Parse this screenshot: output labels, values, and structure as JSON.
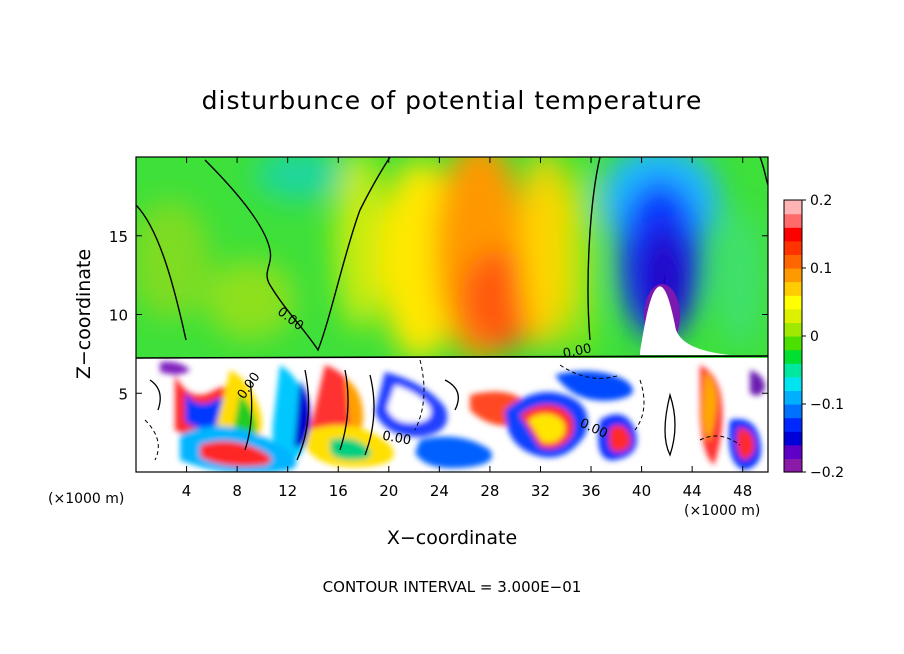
{
  "chart_data": {
    "type": "heatmap",
    "title": "disturbunce of potential temperature",
    "xlabel": "X−coordinate",
    "ylabel": "Z−coordinate",
    "x_unit": "(×1000 m)",
    "xlim": [
      0,
      50
    ],
    "ylim": [
      0,
      20
    ],
    "x_ticks": [
      "4",
      "8",
      "12",
      "16",
      "20",
      "24",
      "28",
      "32",
      "36",
      "40",
      "44",
      "48"
    ],
    "x_tick_values": [
      4,
      8,
      12,
      16,
      20,
      24,
      28,
      32,
      36,
      40,
      44,
      48
    ],
    "y_ticks": [
      "5",
      "10",
      "15"
    ],
    "y_tick_values": [
      5,
      10,
      15
    ],
    "colorbar": {
      "labels": [
        "0.2",
        "0.1",
        "0",
        "−0.1",
        "−0.2"
      ],
      "values": [
        0.2,
        0.1,
        0,
        -0.1,
        -0.2
      ],
      "range": [
        -0.2,
        0.2
      ],
      "colors": [
        "#8b1aa8",
        "#5e00c8",
        "#0000d8",
        "#0028ff",
        "#0070ff",
        "#00b0ff",
        "#00e4f0",
        "#00e8a0",
        "#00e030",
        "#4ce000",
        "#a0e800",
        "#dcf000",
        "#ffff00",
        "#ffcc00",
        "#ff9900",
        "#ff6600",
        "#ff3300",
        "#ff0000",
        "#ff6b6b",
        "#ffb4b4"
      ]
    },
    "contour_labels": [
      "0.00",
      "0.00",
      "0.00",
      "0.00",
      "0.00"
    ],
    "footer": "CONTOUR INTERVAL = 3.000E−01",
    "upper_region_centers": [
      {
        "x": 4,
        "z": 15,
        "value": 0.02
      },
      {
        "x": 10,
        "z": 12,
        "value": 0.03
      },
      {
        "x": 14,
        "z": 19,
        "value": -0.04
      },
      {
        "x": 26,
        "z": 14,
        "value": 0.13
      },
      {
        "x": 28,
        "z": 10,
        "value": 0.16
      },
      {
        "x": 34,
        "z": 14,
        "value": 0.05
      },
      {
        "x": 42,
        "z": 15,
        "value": -0.17
      },
      {
        "x": 42,
        "z": 12,
        "value": -0.2
      },
      {
        "x": 48,
        "z": 10,
        "value": -0.02
      }
    ]
  }
}
